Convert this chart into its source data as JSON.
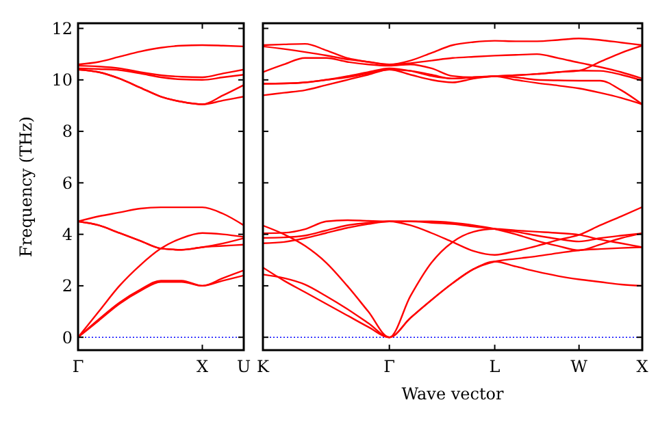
{
  "chart_data": [
    {
      "type": "line",
      "ylabel": "Frequency (THz)",
      "categories": [
        "Γ",
        null,
        null,
        null,
        null,
        null,
        "X",
        null,
        "U"
      ],
      "ylim": [
        -0.5,
        12.2
      ],
      "yticks": [
        0,
        2,
        4,
        6,
        8,
        10,
        12
      ],
      "ref_lines": [
        {
          "axis": "y",
          "value": 0,
          "label": null,
          "color": "#0000ff",
          "line_style": "dotted"
        }
      ],
      "series": [
        {
          "color": "#ff0000",
          "values": [
            0,
            0.65,
            1.3,
            1.8,
            2.15,
            2.15,
            2.0,
            2.2,
            2.4
          ]
        },
        {
          "color": "#ff0000",
          "values": [
            0,
            0.7,
            1.35,
            1.85,
            2.2,
            2.2,
            2.0,
            2.3,
            2.6
          ]
        },
        {
          "color": "#ff0000",
          "values": [
            0,
            1.0,
            2.0,
            2.8,
            3.45,
            3.85,
            4.05,
            4.0,
            3.9
          ]
        },
        {
          "color": "#ff0000",
          "values": [
            4.5,
            4.35,
            4.05,
            3.75,
            3.45,
            3.4,
            3.5,
            3.55,
            3.6
          ]
        },
        {
          "color": "#ff0000",
          "values": [
            4.5,
            4.35,
            4.05,
            3.75,
            3.45,
            3.4,
            3.5,
            3.65,
            3.85
          ]
        },
        {
          "color": "#ff0000",
          "values": [
            4.5,
            4.7,
            4.85,
            5.0,
            5.05,
            5.05,
            5.05,
            4.8,
            4.35
          ]
        },
        {
          "color": "#ff0000",
          "values": [
            10.6,
            10.7,
            10.9,
            11.1,
            11.25,
            11.33,
            11.35,
            11.33,
            11.3
          ]
        },
        {
          "color": "#ff0000",
          "values": [
            10.55,
            10.52,
            10.45,
            10.3,
            10.18,
            10.12,
            10.1,
            10.25,
            10.4
          ]
        },
        {
          "color": "#ff0000",
          "values": [
            10.45,
            10.42,
            10.38,
            10.25,
            10.1,
            10.02,
            10.0,
            10.1,
            10.2
          ]
        },
        {
          "color": "#ff0000",
          "values": [
            10.4,
            10.3,
            10.05,
            9.7,
            9.35,
            9.15,
            9.05,
            9.4,
            9.8
          ]
        },
        {
          "color": "#ff0000",
          "values": [
            10.4,
            10.3,
            10.05,
            9.7,
            9.35,
            9.15,
            9.05,
            9.2,
            9.35
          ]
        }
      ]
    },
    {
      "type": "line",
      "xlabel": "Wave vector",
      "tick_labels": "x",
      "categories": [
        "K",
        null,
        null,
        null,
        null,
        null,
        "Γ",
        null,
        null,
        null,
        null,
        "L",
        null,
        null,
        null,
        "W",
        null,
        null,
        "X"
      ],
      "ylim": [
        -0.5,
        12.2
      ],
      "yticks": [
        0,
        2,
        4,
        6,
        8,
        10,
        12
      ],
      "ref_lines": [
        {
          "axis": "y",
          "value": 0,
          "label": null,
          "color": "#0000ff",
          "line_style": "dotted"
        }
      ],
      "series": [
        {
          "color": "#ff0000",
          "values": [
            2.44,
            2.3,
            2.05,
            1.6,
            1.1,
            0.55,
            0,
            0.75,
            1.45,
            2.1,
            2.65,
            2.94,
            2.75,
            2.55,
            2.38,
            2.25,
            2.15,
            2.05,
            2.0
          ]
        },
        {
          "color": "#ff0000",
          "values": [
            2.71,
            2.2,
            1.75,
            1.3,
            0.85,
            0.4,
            0,
            0.75,
            1.45,
            2.1,
            2.65,
            2.94,
            3.05,
            3.15,
            3.27,
            3.38,
            3.43,
            3.47,
            3.5
          ]
        },
        {
          "color": "#ff0000",
          "values": [
            4.34,
            4.0,
            3.55,
            2.9,
            2.0,
            1.0,
            0,
            1.6,
            2.9,
            3.7,
            4.1,
            4.21,
            4.15,
            4.1,
            4.05,
            3.98,
            3.8,
            3.65,
            3.5
          ]
        },
        {
          "color": "#ff0000",
          "values": [
            4.04,
            4.06,
            4.2,
            4.5,
            4.55,
            4.52,
            4.5,
            4.5,
            4.5,
            4.45,
            4.35,
            4.21,
            4.0,
            3.75,
            3.55,
            3.38,
            3.6,
            3.85,
            4.04
          ]
        },
        {
          "color": "#ff0000",
          "values": [
            3.86,
            3.88,
            3.95,
            4.15,
            4.35,
            4.45,
            4.5,
            4.5,
            4.45,
            4.4,
            4.3,
            4.21,
            4.1,
            3.95,
            3.82,
            3.72,
            3.85,
            3.95,
            4.04
          ]
        },
        {
          "color": "#ff0000",
          "values": [
            3.65,
            3.7,
            3.85,
            4.05,
            4.25,
            4.4,
            4.5,
            4.35,
            4.05,
            3.7,
            3.35,
            3.2,
            3.35,
            3.55,
            3.78,
            3.98,
            4.35,
            4.7,
            5.06
          ]
        },
        {
          "color": "#ff0000",
          "values": [
            11.35,
            11.38,
            11.4,
            11.15,
            10.85,
            10.7,
            10.6,
            10.75,
            11.05,
            11.35,
            11.47,
            11.52,
            11.5,
            11.5,
            11.55,
            11.61,
            11.55,
            11.45,
            11.35
          ]
        },
        {
          "color": "#ff0000",
          "values": [
            11.3,
            11.2,
            11.08,
            10.95,
            10.8,
            10.7,
            10.6,
            10.65,
            10.75,
            10.85,
            10.9,
            10.94,
            10.97,
            11.0,
            10.85,
            10.67,
            10.5,
            10.3,
            10.05
          ]
        },
        {
          "color": "#ff0000",
          "values": [
            10.3,
            10.6,
            10.85,
            10.85,
            10.7,
            10.6,
            10.55,
            10.6,
            10.45,
            10.15,
            10.1,
            10.14,
            10.18,
            10.23,
            10.3,
            10.36,
            10.7,
            11.05,
            11.33
          ]
        },
        {
          "color": "#ff0000",
          "values": [
            9.85,
            9.86,
            9.9,
            10.0,
            10.14,
            10.3,
            10.45,
            10.35,
            10.15,
            10.05,
            10.1,
            10.14,
            10.18,
            10.23,
            10.3,
            10.36,
            10.35,
            10.2,
            9.97
          ]
        },
        {
          "color": "#ff0000",
          "values": [
            9.85,
            9.86,
            9.9,
            10.0,
            10.1,
            10.25,
            10.4,
            10.2,
            10.0,
            9.9,
            10.05,
            10.14,
            10.0,
            9.88,
            9.78,
            9.67,
            9.5,
            9.3,
            9.05
          ]
        },
        {
          "color": "#ff0000",
          "values": [
            9.4,
            9.5,
            9.6,
            9.8,
            10.0,
            10.2,
            10.4,
            10.35,
            10.2,
            10.05,
            10.1,
            10.14,
            10.1,
            10.0,
            9.98,
            9.97,
            9.97,
            9.6,
            9.05
          ]
        }
      ]
    }
  ]
}
